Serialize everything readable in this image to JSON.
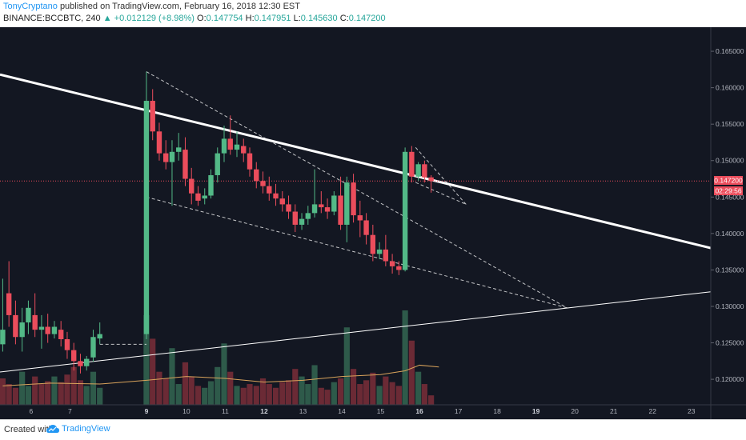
{
  "header": {
    "author": "TonyCryptano",
    "published": "published on TradingView.com, February 16, 2018 12:30 EST",
    "symbol": "BINANCE:BCCBTC, 240",
    "change": "+0.012129 (+8.98%)",
    "o_label": "O:",
    "o_value": "0.147754",
    "h_label": "H:",
    "h_value": "0.147951",
    "l_label": "L:",
    "l_value": "0.145630",
    "c_label": "C:",
    "c_value": "0.147200"
  },
  "footer": {
    "created": "Created with",
    "brand": "TradingView"
  },
  "price_tag": {
    "price": "0.147200",
    "countdown": "02:29:56"
  },
  "colors": {
    "background": "#131722",
    "up": "#53b987",
    "down": "#eb4d5c",
    "vol_up": "#2e5a4a",
    "vol_down": "#6b2a35",
    "trendline": "#ffffff",
    "ma": "#d9a35b",
    "price_line": "#eb4d5c",
    "axis_text": "#b2b5be"
  },
  "chart_data": {
    "type": "candlestick",
    "symbol": "BINANCE:BCCBTC",
    "timeframe": "240",
    "y_ticks": [
      "0.165000",
      "0.160000",
      "0.155000",
      "0.150000",
      "0.145000",
      "0.140000",
      "0.135000",
      "0.130000",
      "0.125000",
      "0.120000"
    ],
    "x_ticks": [
      "6",
      "7",
      "9",
      "10",
      "11",
      "12",
      "13",
      "14",
      "15",
      "16",
      "17",
      "18",
      "19",
      "20",
      "21",
      "22",
      "23"
    ],
    "ylim": [
      0.1165,
      0.1683
    ],
    "xlim": [
      5.2,
      23.5
    ],
    "last_price": 0.1472,
    "candles": [
      {
        "t": 5.27,
        "o": 0.1248,
        "h": 0.1338,
        "c": 0.1268,
        "l": 0.1238
      },
      {
        "t": 5.43,
        "o": 0.1318,
        "h": 0.1362,
        "c": 0.1288,
        "l": 0.1272
      },
      {
        "t": 5.6,
        "o": 0.1288,
        "h": 0.1308,
        "c": 0.1258,
        "l": 0.1248
      },
      {
        "t": 5.77,
        "o": 0.1258,
        "h": 0.1298,
        "c": 0.1278,
        "l": 0.1238
      },
      {
        "t": 5.93,
        "o": 0.1278,
        "h": 0.1308,
        "c": 0.1298,
        "l": 0.1262
      },
      {
        "t": 6.1,
        "o": 0.1288,
        "h": 0.1318,
        "c": 0.1268,
        "l": 0.1258
      },
      {
        "t": 6.27,
        "o": 0.1268,
        "h": 0.1288,
        "c": 0.1272,
        "l": 0.1242
      },
      {
        "t": 6.43,
        "o": 0.1272,
        "h": 0.129,
        "c": 0.1262,
        "l": 0.125
      },
      {
        "t": 6.6,
        "o": 0.1262,
        "h": 0.128,
        "c": 0.1272,
        "l": 0.1256
      },
      {
        "t": 6.77,
        "o": 0.1268,
        "h": 0.128,
        "c": 0.1255,
        "l": 0.1245
      },
      {
        "t": 6.93,
        "o": 0.1255,
        "h": 0.1265,
        "c": 0.124,
        "l": 0.1228
      },
      {
        "t": 7.1,
        "o": 0.124,
        "h": 0.125,
        "c": 0.1225,
        "l": 0.1212
      },
      {
        "t": 7.27,
        "o": 0.1225,
        "h": 0.1235,
        "c": 0.1218,
        "l": 0.1208
      },
      {
        "t": 7.43,
        "o": 0.1218,
        "h": 0.1232,
        "c": 0.1228,
        "l": 0.1212
      },
      {
        "t": 7.6,
        "o": 0.123,
        "h": 0.1268,
        "c": 0.1258,
        "l": 0.1224
      },
      {
        "t": 7.77,
        "o": 0.1256,
        "h": 0.1278,
        "c": 0.1262,
        "l": 0.1248
      },
      {
        "t": 8.97,
        "o": 0.1262,
        "h": 0.1622,
        "c": 0.1582,
        "l": 0.1255
      },
      {
        "t": 9.13,
        "o": 0.1582,
        "h": 0.1598,
        "c": 0.154,
        "l": 0.1528
      },
      {
        "t": 9.3,
        "o": 0.154,
        "h": 0.1552,
        "c": 0.151,
        "l": 0.15
      },
      {
        "t": 9.47,
        "o": 0.151,
        "h": 0.1528,
        "c": 0.1498,
        "l": 0.1488
      },
      {
        "t": 9.63,
        "o": 0.1498,
        "h": 0.1528,
        "c": 0.1512,
        "l": 0.1438
      },
      {
        "t": 9.8,
        "o": 0.1512,
        "h": 0.1538,
        "c": 0.1518,
        "l": 0.15
      },
      {
        "t": 9.97,
        "o": 0.1515,
        "h": 0.1532,
        "c": 0.1475,
        "l": 0.1465
      },
      {
        "t": 10.13,
        "o": 0.1475,
        "h": 0.149,
        "c": 0.1455,
        "l": 0.144
      },
      {
        "t": 10.3,
        "o": 0.1455,
        "h": 0.1465,
        "c": 0.1445,
        "l": 0.1438
      },
      {
        "t": 10.47,
        "o": 0.1448,
        "h": 0.1462,
        "c": 0.1452,
        "l": 0.144
      },
      {
        "t": 10.63,
        "o": 0.1452,
        "h": 0.1488,
        "c": 0.148,
        "l": 0.1448
      },
      {
        "t": 10.8,
        "o": 0.148,
        "h": 0.1518,
        "c": 0.151,
        "l": 0.147
      },
      {
        "t": 10.97,
        "o": 0.151,
        "h": 0.1548,
        "c": 0.153,
        "l": 0.1498
      },
      {
        "t": 11.13,
        "o": 0.153,
        "h": 0.1562,
        "c": 0.1515,
        "l": 0.1508
      },
      {
        "t": 11.3,
        "o": 0.1515,
        "h": 0.154,
        "c": 0.1522,
        "l": 0.1505
      },
      {
        "t": 11.47,
        "o": 0.152,
        "h": 0.153,
        "c": 0.151,
        "l": 0.1498
      },
      {
        "t": 11.63,
        "o": 0.151,
        "h": 0.1518,
        "c": 0.1488,
        "l": 0.1478
      },
      {
        "t": 11.8,
        "o": 0.1488,
        "h": 0.1498,
        "c": 0.1472,
        "l": 0.1462
      },
      {
        "t": 11.97,
        "o": 0.1472,
        "h": 0.1485,
        "c": 0.1465,
        "l": 0.1455
      },
      {
        "t": 12.13,
        "o": 0.1465,
        "h": 0.1478,
        "c": 0.1455,
        "l": 0.1445
      },
      {
        "t": 12.3,
        "o": 0.1455,
        "h": 0.1468,
        "c": 0.1448,
        "l": 0.1438
      },
      {
        "t": 12.47,
        "o": 0.1448,
        "h": 0.1458,
        "c": 0.144,
        "l": 0.143
      },
      {
        "t": 12.63,
        "o": 0.144,
        "h": 0.1452,
        "c": 0.143,
        "l": 0.142
      },
      {
        "t": 12.8,
        "o": 0.143,
        "h": 0.144,
        "c": 0.1412,
        "l": 0.1402
      },
      {
        "t": 12.97,
        "o": 0.1412,
        "h": 0.1428,
        "c": 0.142,
        "l": 0.1405
      },
      {
        "t": 13.13,
        "o": 0.142,
        "h": 0.1438,
        "c": 0.1428,
        "l": 0.1412
      },
      {
        "t": 13.3,
        "o": 0.1428,
        "h": 0.1488,
        "c": 0.144,
        "l": 0.1422
      },
      {
        "t": 13.47,
        "o": 0.144,
        "h": 0.1458,
        "c": 0.1436,
        "l": 0.1428
      },
      {
        "t": 13.63,
        "o": 0.1436,
        "h": 0.1448,
        "c": 0.143,
        "l": 0.142
      },
      {
        "t": 13.8,
        "o": 0.143,
        "h": 0.1458,
        "c": 0.1452,
        "l": 0.1425
      },
      {
        "t": 13.97,
        "o": 0.1452,
        "h": 0.1478,
        "c": 0.1412,
        "l": 0.1405
      },
      {
        "t": 14.13,
        "o": 0.1412,
        "h": 0.1478,
        "c": 0.147,
        "l": 0.1388
      },
      {
        "t": 14.3,
        "o": 0.147,
        "h": 0.1482,
        "c": 0.1425,
        "l": 0.1415
      },
      {
        "t": 14.47,
        "o": 0.1425,
        "h": 0.1445,
        "c": 0.1418,
        "l": 0.1395
      },
      {
        "t": 14.63,
        "o": 0.1418,
        "h": 0.1428,
        "c": 0.1398,
        "l": 0.1385
      },
      {
        "t": 14.8,
        "o": 0.1398,
        "h": 0.1412,
        "c": 0.1372,
        "l": 0.1362
      },
      {
        "t": 14.97,
        "o": 0.1372,
        "h": 0.1388,
        "c": 0.1378,
        "l": 0.1365
      },
      {
        "t": 15.13,
        "o": 0.1378,
        "h": 0.1398,
        "c": 0.1362,
        "l": 0.1355
      },
      {
        "t": 15.3,
        "o": 0.1362,
        "h": 0.1372,
        "c": 0.1355,
        "l": 0.1345
      },
      {
        "t": 15.47,
        "o": 0.1355,
        "h": 0.1362,
        "c": 0.135,
        "l": 0.1343
      },
      {
        "t": 15.63,
        "o": 0.135,
        "h": 0.1518,
        "c": 0.1512,
        "l": 0.1348
      },
      {
        "t": 15.8,
        "o": 0.1512,
        "h": 0.152,
        "c": 0.1478,
        "l": 0.147
      },
      {
        "t": 15.97,
        "o": 0.1478,
        "h": 0.1498,
        "c": 0.1495,
        "l": 0.1472
      },
      {
        "t": 16.13,
        "o": 0.1495,
        "h": 0.15,
        "c": 0.1477,
        "l": 0.147
      },
      {
        "t": 16.3,
        "o": 0.1477,
        "h": 0.148,
        "c": 0.1472,
        "l": 0.1456
      }
    ],
    "volume": {
      "ylim": [
        0,
        1
      ],
      "bars": [
        {
          "t": 5.27,
          "v": 0.28,
          "up": false
        },
        {
          "t": 5.43,
          "v": 0.22,
          "up": false
        },
        {
          "t": 5.6,
          "v": 0.18,
          "up": false
        },
        {
          "t": 5.77,
          "v": 0.35,
          "up": true
        },
        {
          "t": 5.93,
          "v": 0.2,
          "up": true
        },
        {
          "t": 6.1,
          "v": 0.3,
          "up": false
        },
        {
          "t": 6.27,
          "v": 0.22,
          "up": false
        },
        {
          "t": 6.43,
          "v": 0.25,
          "up": false
        },
        {
          "t": 6.6,
          "v": 0.3,
          "up": true
        },
        {
          "t": 6.77,
          "v": 0.24,
          "up": false
        },
        {
          "t": 6.93,
          "v": 0.32,
          "up": false
        },
        {
          "t": 7.1,
          "v": 0.4,
          "up": false
        },
        {
          "t": 7.27,
          "v": 0.26,
          "up": false
        },
        {
          "t": 7.43,
          "v": 0.2,
          "up": true
        },
        {
          "t": 7.6,
          "v": 0.35,
          "up": true
        },
        {
          "t": 7.77,
          "v": 0.18,
          "up": true
        },
        {
          "t": 8.97,
          "v": 0.95,
          "up": true
        },
        {
          "t": 9.13,
          "v": 0.7,
          "up": false
        },
        {
          "t": 9.3,
          "v": 0.35,
          "up": false
        },
        {
          "t": 9.47,
          "v": 0.28,
          "up": false
        },
        {
          "t": 9.63,
          "v": 0.6,
          "up": true
        },
        {
          "t": 9.8,
          "v": 0.22,
          "up": true
        },
        {
          "t": 9.97,
          "v": 0.45,
          "up": false
        },
        {
          "t": 10.13,
          "v": 0.3,
          "up": false
        },
        {
          "t": 10.3,
          "v": 0.2,
          "up": false
        },
        {
          "t": 10.47,
          "v": 0.18,
          "up": true
        },
        {
          "t": 10.63,
          "v": 0.25,
          "up": true
        },
        {
          "t": 10.8,
          "v": 0.4,
          "up": true
        },
        {
          "t": 10.97,
          "v": 0.65,
          "up": true
        },
        {
          "t": 11.13,
          "v": 0.35,
          "up": false
        },
        {
          "t": 11.3,
          "v": 0.2,
          "up": true
        },
        {
          "t": 11.47,
          "v": 0.18,
          "up": false
        },
        {
          "t": 11.63,
          "v": 0.22,
          "up": false
        },
        {
          "t": 11.8,
          "v": 0.2,
          "up": false
        },
        {
          "t": 11.97,
          "v": 0.28,
          "up": false
        },
        {
          "t": 12.13,
          "v": 0.22,
          "up": false
        },
        {
          "t": 12.3,
          "v": 0.18,
          "up": false
        },
        {
          "t": 12.47,
          "v": 0.24,
          "up": false
        },
        {
          "t": 12.63,
          "v": 0.26,
          "up": false
        },
        {
          "t": 12.8,
          "v": 0.38,
          "up": false
        },
        {
          "t": 12.97,
          "v": 0.3,
          "up": true
        },
        {
          "t": 13.13,
          "v": 0.22,
          "up": true
        },
        {
          "t": 13.3,
          "v": 0.42,
          "up": true
        },
        {
          "t": 13.47,
          "v": 0.18,
          "up": false
        },
        {
          "t": 13.63,
          "v": 0.16,
          "up": false
        },
        {
          "t": 13.8,
          "v": 0.24,
          "up": true
        },
        {
          "t": 13.97,
          "v": 0.28,
          "up": false
        },
        {
          "t": 14.13,
          "v": 0.82,
          "up": true
        },
        {
          "t": 14.3,
          "v": 0.38,
          "up": false
        },
        {
          "t": 14.47,
          "v": 0.22,
          "up": false
        },
        {
          "t": 14.63,
          "v": 0.26,
          "up": false
        },
        {
          "t": 14.8,
          "v": 0.34,
          "up": false
        },
        {
          "t": 14.97,
          "v": 0.2,
          "up": true
        },
        {
          "t": 15.13,
          "v": 0.3,
          "up": false
        },
        {
          "t": 15.3,
          "v": 0.24,
          "up": false
        },
        {
          "t": 15.47,
          "v": 0.2,
          "up": false
        },
        {
          "t": 15.63,
          "v": 1.0,
          "up": true
        },
        {
          "t": 15.8,
          "v": 0.68,
          "up": false
        },
        {
          "t": 15.97,
          "v": 0.35,
          "up": true
        },
        {
          "t": 16.13,
          "v": 0.22,
          "up": false
        },
        {
          "t": 16.3,
          "v": 0.1,
          "up": false
        }
      ]
    },
    "volume_ma": [
      {
        "t": 5.27,
        "v": 0.2
      },
      {
        "t": 6.5,
        "v": 0.23
      },
      {
        "t": 7.77,
        "v": 0.22
      },
      {
        "t": 8.97,
        "v": 0.26
      },
      {
        "t": 10.0,
        "v": 0.3
      },
      {
        "t": 11.0,
        "v": 0.28
      },
      {
        "t": 12.0,
        "v": 0.24
      },
      {
        "t": 13.0,
        "v": 0.26
      },
      {
        "t": 14.0,
        "v": 0.3
      },
      {
        "t": 15.0,
        "v": 0.32
      },
      {
        "t": 15.63,
        "v": 0.36
      },
      {
        "t": 16.0,
        "v": 0.42
      },
      {
        "t": 16.5,
        "v": 0.4
      }
    ],
    "drawings": [
      {
        "kind": "trend",
        "style": "solid",
        "width": 3,
        "from": {
          "t": 5.2,
          "p": 0.1618
        },
        "to": {
          "t": 23.5,
          "p": 0.138
        }
      },
      {
        "kind": "trend",
        "style": "solid",
        "width": 1,
        "from": {
          "t": 5.2,
          "p": 0.121
        },
        "to": {
          "t": 23.5,
          "p": 0.132
        }
      },
      {
        "kind": "trend",
        "style": "dashed",
        "width": 1,
        "from": {
          "t": 8.97,
          "p": 0.1622
        },
        "to": {
          "t": 19.8,
          "p": 0.1298
        }
      },
      {
        "kind": "trend",
        "style": "dashed",
        "width": 1,
        "from": {
          "t": 8.97,
          "p": 0.145
        },
        "to": {
          "t": 19.8,
          "p": 0.1298
        }
      },
      {
        "kind": "trend",
        "style": "dashed",
        "width": 1,
        "from": {
          "t": 15.9,
          "p": 0.1518
        },
        "to": {
          "t": 17.2,
          "p": 0.144
        }
      },
      {
        "kind": "trend",
        "style": "dashed",
        "width": 1,
        "from": {
          "t": 15.9,
          "p": 0.147
        },
        "to": {
          "t": 17.2,
          "p": 0.144
        }
      },
      {
        "kind": "trend",
        "style": "dashed",
        "width": 1,
        "from": {
          "t": 7.77,
          "p": 0.1248
        },
        "to": {
          "t": 8.97,
          "p": 0.1248
        }
      }
    ]
  }
}
